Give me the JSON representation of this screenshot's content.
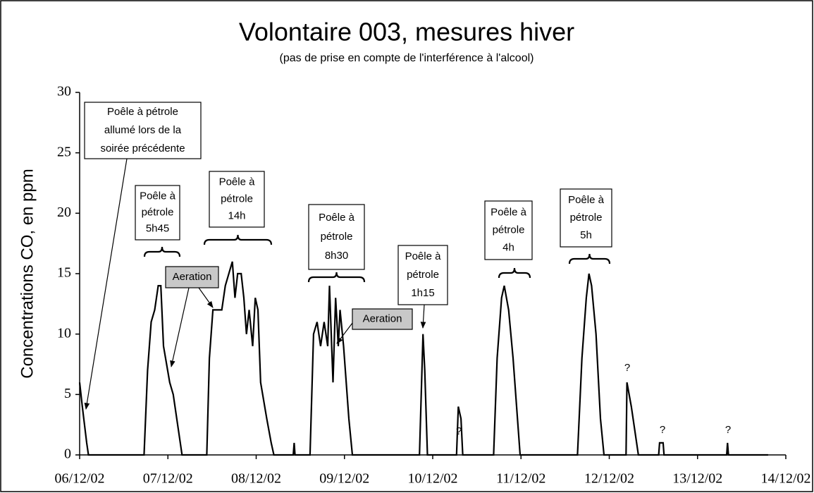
{
  "chart_data": {
    "type": "line",
    "title": "Volontaire 003, mesures hiver",
    "subtitle": "(pas de prise en compte de l'interférence à l'alcool)",
    "ylabel": "Concentrations CO, en ppm",
    "color": "#000000",
    "x": [
      0,
      0.03,
      0.08,
      0.1,
      0.73,
      0.77,
      0.81,
      0.85,
      0.89,
      0.92,
      0.95,
      1.02,
      1.06,
      1.1,
      1.16,
      1.44,
      1.47,
      1.51,
      1.61,
      1.65,
      1.69,
      1.73,
      1.76,
      1.79,
      1.83,
      1.86,
      1.89,
      1.92,
      1.96,
      1.99,
      2.02,
      2.05,
      2.12,
      2.17,
      2.2,
      2.42,
      2.43,
      2.44,
      2.61,
      2.65,
      2.69,
      2.73,
      2.77,
      2.81,
      2.83,
      2.87,
      2.9,
      2.93,
      2.95,
      2.99,
      3.05,
      3.09,
      3.85,
      3.89,
      3.91,
      3.94,
      4.27,
      4.29,
      4.32,
      4.34,
      4.69,
      4.73,
      4.78,
      4.81,
      4.86,
      4.91,
      4.97,
      4.99,
      5.64,
      5.69,
      5.74,
      5.77,
      5.8,
      5.85,
      5.9,
      5.94,
      6.19,
      6.2,
      6.25,
      6.29,
      6.33,
      6.56,
      6.57,
      6.61,
      6.62,
      7.33,
      7.34,
      7.35,
      7.8
    ],
    "values": [
      6,
      4,
      1,
      0,
      0,
      7,
      11,
      12,
      14,
      14,
      9,
      6,
      5,
      3,
      0,
      0,
      8,
      12,
      12,
      14,
      15,
      16,
      13,
      15,
      15,
      13,
      10,
      12,
      9,
      13,
      12,
      6,
      3,
      1,
      0,
      0,
      1,
      0,
      0,
      10,
      11,
      9,
      11,
      9,
      14,
      6,
      13,
      9,
      12,
      9,
      3,
      0,
      0,
      10,
      7,
      0,
      0,
      4,
      3,
      0,
      0,
      8,
      13,
      14,
      12,
      8,
      2,
      0,
      0,
      8,
      13,
      15,
      14,
      10,
      3,
      0,
      0,
      6,
      4,
      2,
      0,
      0,
      1,
      1,
      0,
      0,
      1,
      0,
      0
    ],
    "xlim": [
      0,
      8
    ],
    "xticks": [
      {
        "value": 0,
        "label": "06/12/02"
      },
      {
        "value": 1,
        "label": "07/12/02"
      },
      {
        "value": 2,
        "label": "08/12/02"
      },
      {
        "value": 3,
        "label": "09/12/02"
      },
      {
        "value": 4,
        "label": "10/12/02"
      },
      {
        "value": 5,
        "label": "11/12/02"
      },
      {
        "value": 6,
        "label": "12/12/02"
      },
      {
        "value": 7,
        "label": "13/12/02"
      },
      {
        "value": 8,
        "label": "14/12/02"
      }
    ],
    "ylim": [
      0,
      30
    ],
    "yticks": [
      0,
      5,
      10,
      15,
      20,
      25,
      30
    ],
    "grid": false,
    "annotations": [
      [
        "Poêle à pétrole",
        "allumé lors de la",
        "soirée précédente"
      ],
      [
        "Poêle à",
        "pétrole",
        "5h45"
      ],
      [
        "Poêle à",
        "pétrole",
        "14h"
      ],
      [
        "Poêle à",
        "pétrole",
        "8h30"
      ],
      [
        "Poêle à",
        "pétrole",
        "1h15"
      ],
      [
        "Poêle à",
        "pétrole",
        "4h"
      ],
      [
        "Poêle à",
        "pétrole",
        "5h"
      ],
      [
        "Aeration"
      ],
      [
        "Aeration"
      ],
      [
        "?"
      ],
      [
        "?"
      ],
      [
        "?"
      ],
      [
        "?"
      ]
    ]
  }
}
